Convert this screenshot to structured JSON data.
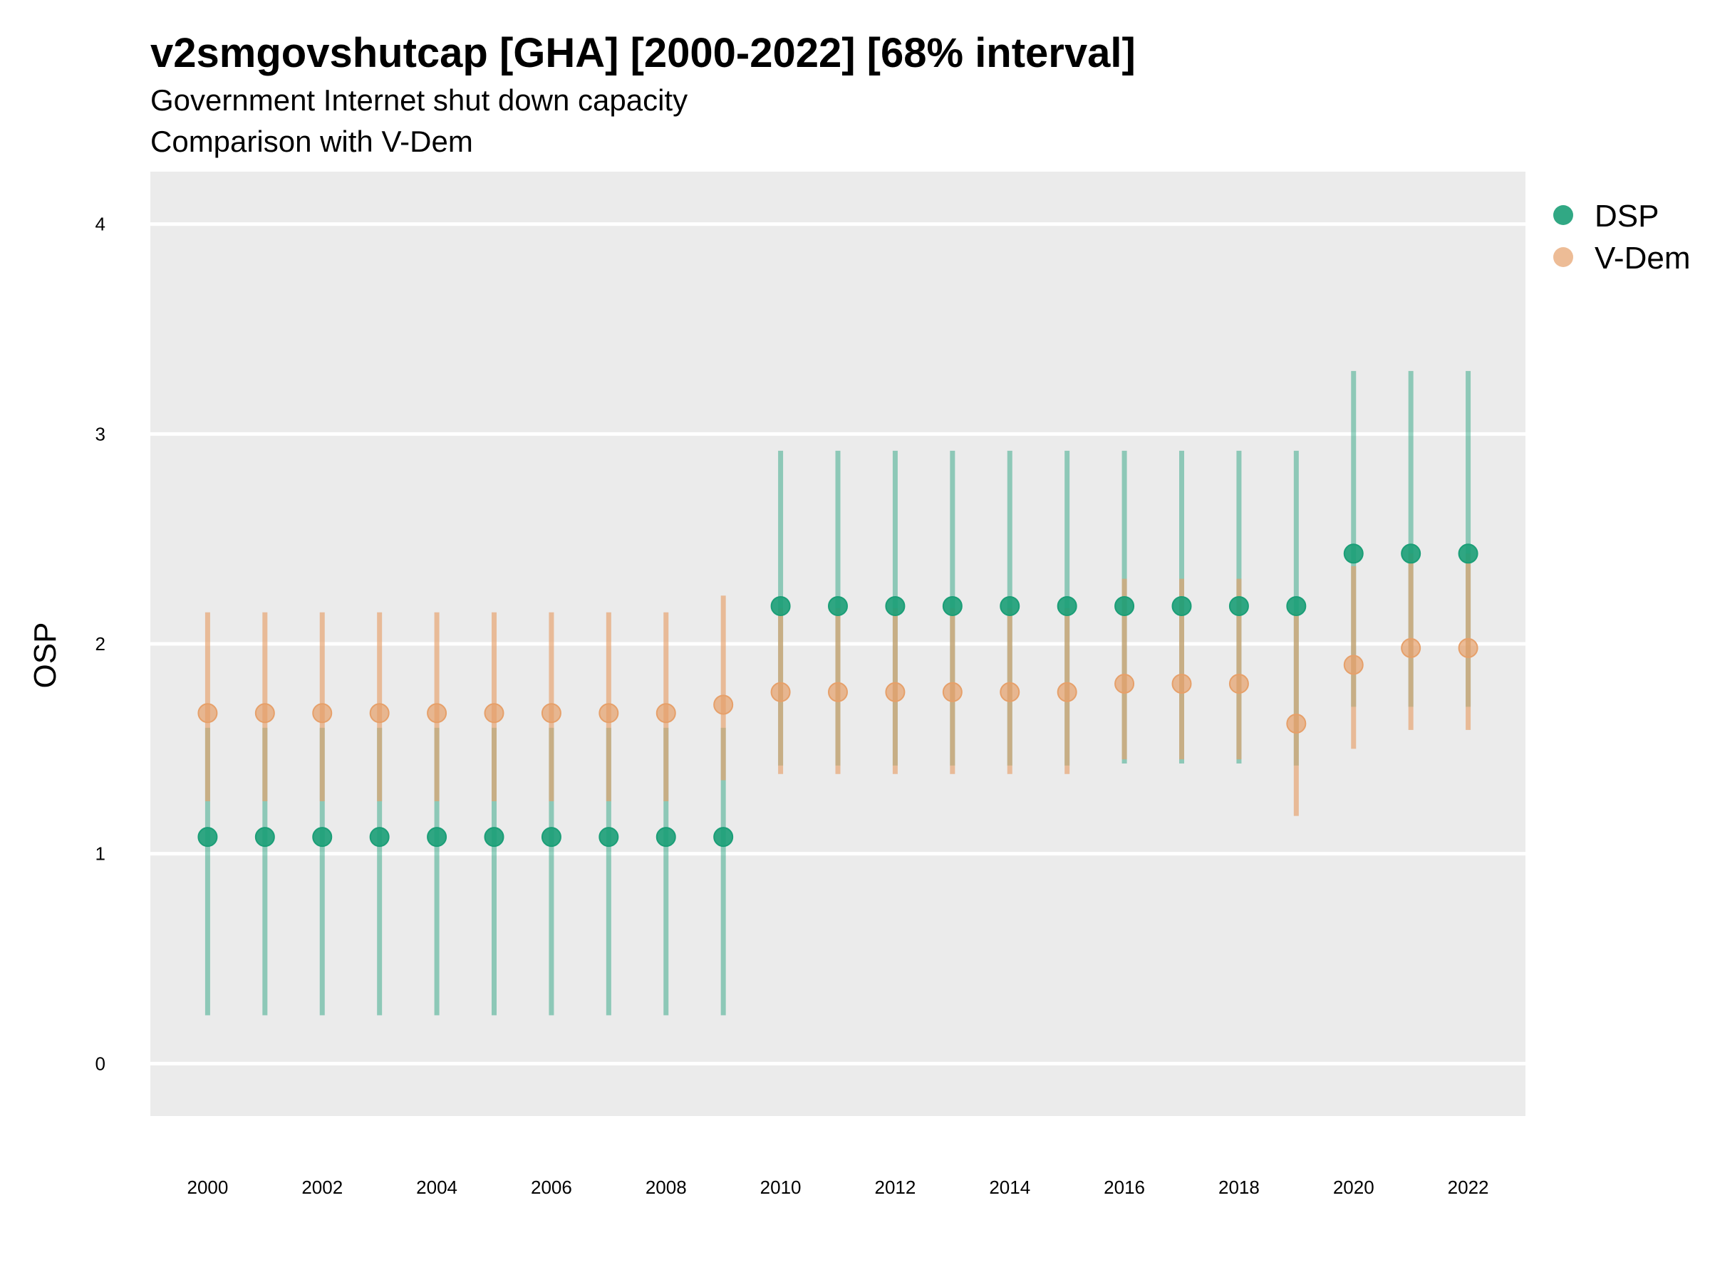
{
  "chart_data": {
    "type": "scatter",
    "title": "v2smgovshutcap [GHA] [2000-2022] [68% interval]",
    "subtitle": [
      "Government Internet shut down capacity",
      "Comparison with V-Dem"
    ],
    "xlabel": "",
    "ylabel": "OSP",
    "ylim": [
      -0.25,
      4.25
    ],
    "yticks": [
      0,
      1,
      2,
      3,
      4
    ],
    "xlim": [
      1999,
      2023
    ],
    "xticks": [
      2000,
      2002,
      2004,
      2006,
      2008,
      2010,
      2012,
      2014,
      2016,
      2018,
      2020,
      2022
    ],
    "grid": true,
    "legend_position": "right",
    "colors": {
      "DSP": "#1b9e77",
      "V-Dem": "#e6a06a",
      "panel": "#ebebeb",
      "grid": "#ffffff"
    },
    "x": [
      2000,
      2001,
      2002,
      2003,
      2004,
      2005,
      2006,
      2007,
      2008,
      2009,
      2010,
      2011,
      2012,
      2013,
      2014,
      2015,
      2016,
      2017,
      2018,
      2019,
      2020,
      2021,
      2022
    ],
    "series": [
      {
        "name": "DSP",
        "values": [
          1.08,
          1.08,
          1.08,
          1.08,
          1.08,
          1.08,
          1.08,
          1.08,
          1.08,
          1.08,
          2.18,
          2.18,
          2.18,
          2.18,
          2.18,
          2.18,
          2.18,
          2.18,
          2.18,
          2.18,
          2.43,
          2.43,
          2.43
        ],
        "lower": [
          0.23,
          0.23,
          0.23,
          0.23,
          0.23,
          0.23,
          0.23,
          0.23,
          0.23,
          0.23,
          1.42,
          1.42,
          1.42,
          1.42,
          1.42,
          1.42,
          1.43,
          1.43,
          1.43,
          1.42,
          1.7,
          1.7,
          1.7
        ],
        "upper": [
          1.6,
          1.6,
          1.6,
          1.6,
          1.6,
          1.6,
          1.6,
          1.6,
          1.6,
          1.6,
          2.92,
          2.92,
          2.92,
          2.92,
          2.92,
          2.92,
          2.92,
          2.92,
          2.92,
          2.92,
          3.3,
          3.3,
          3.3
        ]
      },
      {
        "name": "V-Dem",
        "values": [
          1.67,
          1.67,
          1.67,
          1.67,
          1.67,
          1.67,
          1.67,
          1.67,
          1.67,
          1.71,
          1.77,
          1.77,
          1.77,
          1.77,
          1.77,
          1.77,
          1.81,
          1.81,
          1.81,
          1.62,
          1.9,
          1.98,
          1.98
        ],
        "lower": [
          1.25,
          1.25,
          1.25,
          1.25,
          1.25,
          1.25,
          1.25,
          1.25,
          1.25,
          1.35,
          1.38,
          1.38,
          1.38,
          1.38,
          1.38,
          1.38,
          1.45,
          1.45,
          1.45,
          1.18,
          1.5,
          1.59,
          1.59
        ],
        "upper": [
          2.15,
          2.15,
          2.15,
          2.15,
          2.15,
          2.15,
          2.15,
          2.15,
          2.15,
          2.23,
          2.17,
          2.17,
          2.17,
          2.17,
          2.17,
          2.17,
          2.31,
          2.31,
          2.31,
          2.15,
          2.37,
          2.43,
          2.43
        ]
      }
    ]
  }
}
